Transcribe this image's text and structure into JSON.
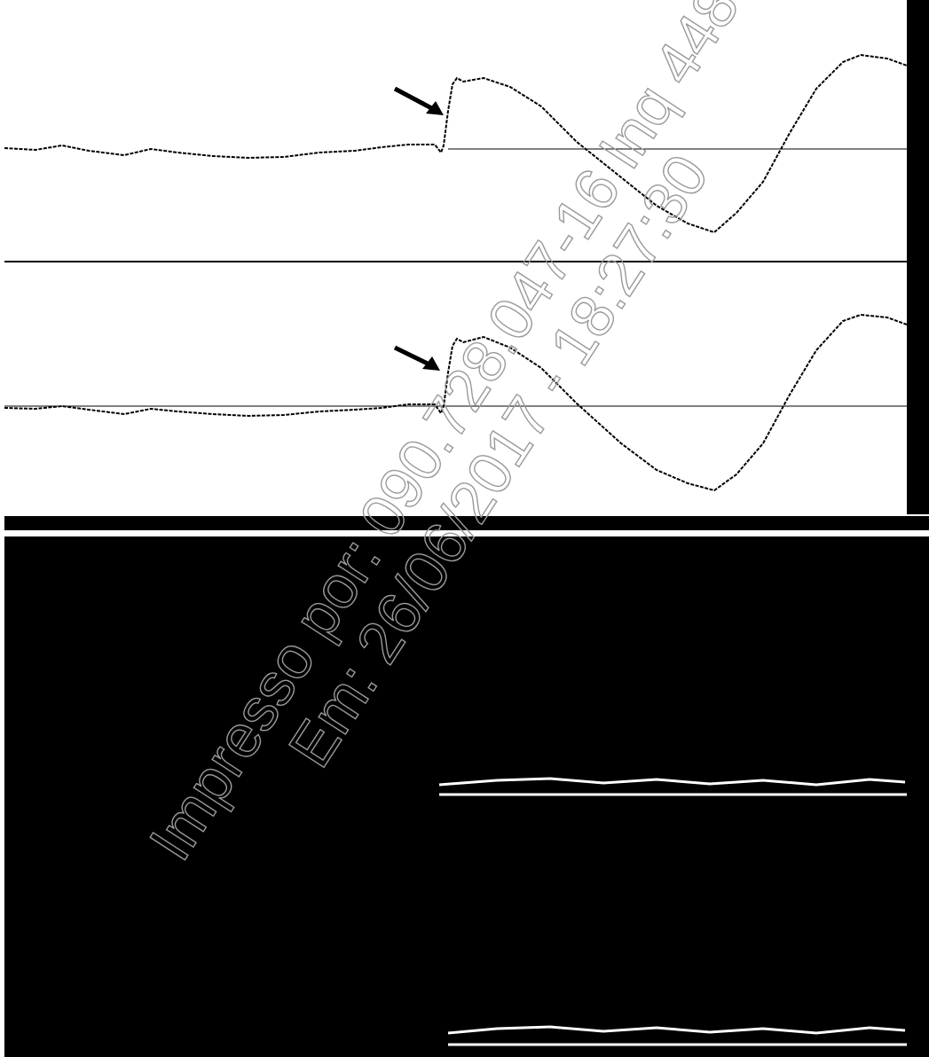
{
  "watermark": {
    "line1": "Impresso por: 090.728.047-16 Inq 448",
    "line2": "Em: 26/06/2017 - 18:27:30"
  }
}
